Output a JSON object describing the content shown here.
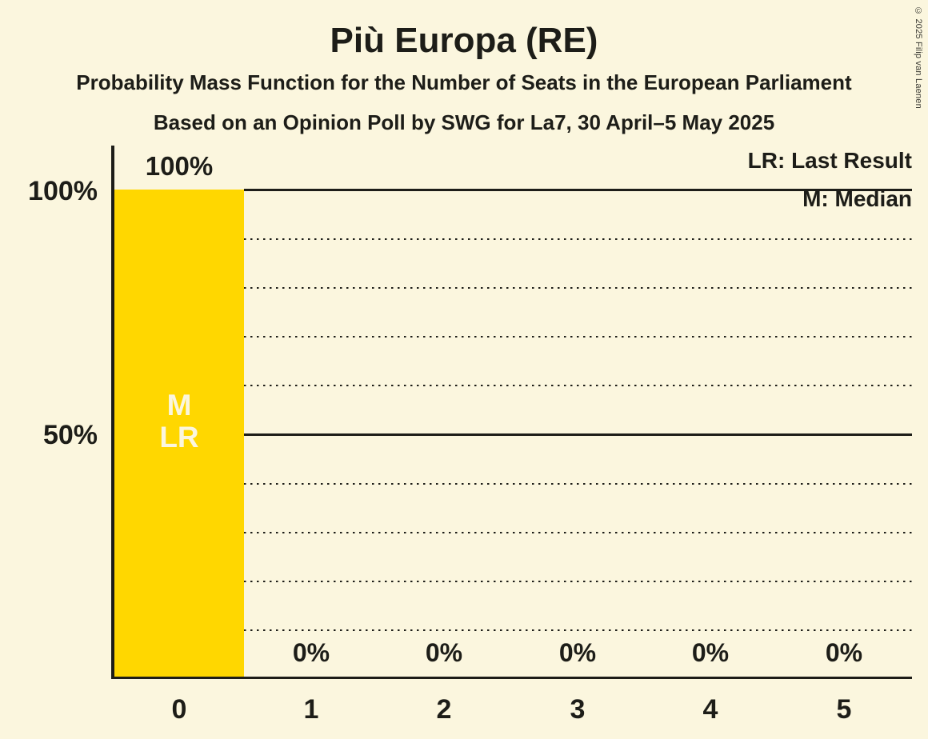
{
  "title": "Più Europa (RE)",
  "subtitle": "Probability Mass Function for the Number of Seats in the European Parliament",
  "subtitle2": "Based on an Opinion Poll by SWG for La7, 30 April–5 May 2025",
  "copyright": "© 2025 Filip van Laenen",
  "legend": {
    "lr": "LR: Last Result",
    "m": "M: Median"
  },
  "colors": {
    "background": "#FBF6DE",
    "bar": "#FFD700",
    "text": "#1D1D18",
    "bar_annotation_text": "#FBF6DE"
  },
  "y_axis": {
    "tick_100": "100%",
    "tick_50": "50%"
  },
  "chart_data": {
    "type": "bar",
    "title": "Più Europa (RE)",
    "categories": [
      "0",
      "1",
      "2",
      "3",
      "4",
      "5"
    ],
    "values_percent": [
      100,
      0,
      0,
      0,
      0,
      0
    ],
    "bar_labels": [
      "100%",
      "0%",
      "0%",
      "0%",
      "0%",
      "0%"
    ],
    "ylim": [
      0,
      100
    ],
    "ytick_labels": [
      "100%",
      "50%"
    ],
    "gridlines": {
      "solid_percent": [
        100,
        50
      ],
      "dotted_percent": [
        90,
        80,
        70,
        60,
        40,
        30,
        20,
        10
      ]
    },
    "annotations": {
      "category": "0",
      "line1": "M",
      "line2": "LR"
    },
    "legend_entries": [
      "LR: Last Result",
      "M: Median"
    ],
    "grid": "horizontal only",
    "legend_position": "top-right"
  }
}
